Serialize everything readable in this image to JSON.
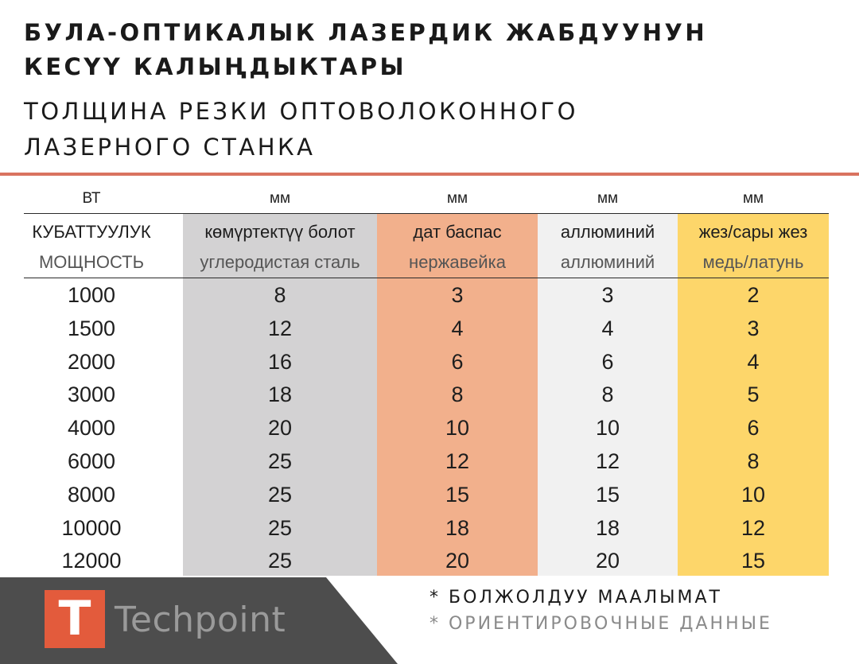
{
  "titles": {
    "ky_line1": "БУЛА-ОПТИКАЛЫК ЛАЗЕРДИК ЖАБДУУНУН",
    "ky_line2": "КЕСҮҮ КАЛЫҢДЫКТАРЫ",
    "ru_line1": "ТОЛЩИНА РЕЗКИ ОПТОВОЛОКОННОГО",
    "ru_line2": "ЛАЗЕРНОГО СТАНКА"
  },
  "colors": {
    "accent_line": "#d9735f",
    "carbon_steel": "#d3d2d3",
    "stainless": "#f2b08c",
    "aluminum": "#f1f1f1",
    "brass": "#fdd66a",
    "logo_red": "#e35b3c",
    "logo_panel": "#4d4d4d"
  },
  "table": {
    "columns": [
      {
        "unit": "ВТ",
        "header_ky": "КУБАТТУУЛУК",
        "header_ru": "МОЩНОСТЬ"
      },
      {
        "unit": "мм",
        "header_ky": "көмүртектүү болот",
        "header_ru": "углеродистая сталь"
      },
      {
        "unit": "мм",
        "header_ky": "дат баспас",
        "header_ru": "нержавейка"
      },
      {
        "unit": "мм",
        "header_ky": "аллюминий",
        "header_ru": "аллюминий"
      },
      {
        "unit": "мм",
        "header_ky": "жез/сары жез",
        "header_ru": "медь/латунь"
      }
    ],
    "rows": [
      [
        "1000",
        "8",
        "3",
        "3",
        "2"
      ],
      [
        "1500",
        "12",
        "4",
        "4",
        "3"
      ],
      [
        "2000",
        "16",
        "6",
        "6",
        "4"
      ],
      [
        "3000",
        "18",
        "8",
        "8",
        "5"
      ],
      [
        "4000",
        "20",
        "10",
        "10",
        "6"
      ],
      [
        "6000",
        "25",
        "12",
        "12",
        "8"
      ],
      [
        "8000",
        "25",
        "15",
        "15",
        "10"
      ],
      [
        "10000",
        "25",
        "18",
        "18",
        "12"
      ],
      [
        "12000",
        "25",
        "20",
        "20",
        "15"
      ]
    ]
  },
  "footer": {
    "logo_letter": "T",
    "logo_text": "Techpoint",
    "note_ky": "* БОЛЖОЛДУУ МААЛЫМАТ",
    "note_ru": "* ОРИЕНТИРОВОЧНЫЕ ДАННЫЕ"
  }
}
